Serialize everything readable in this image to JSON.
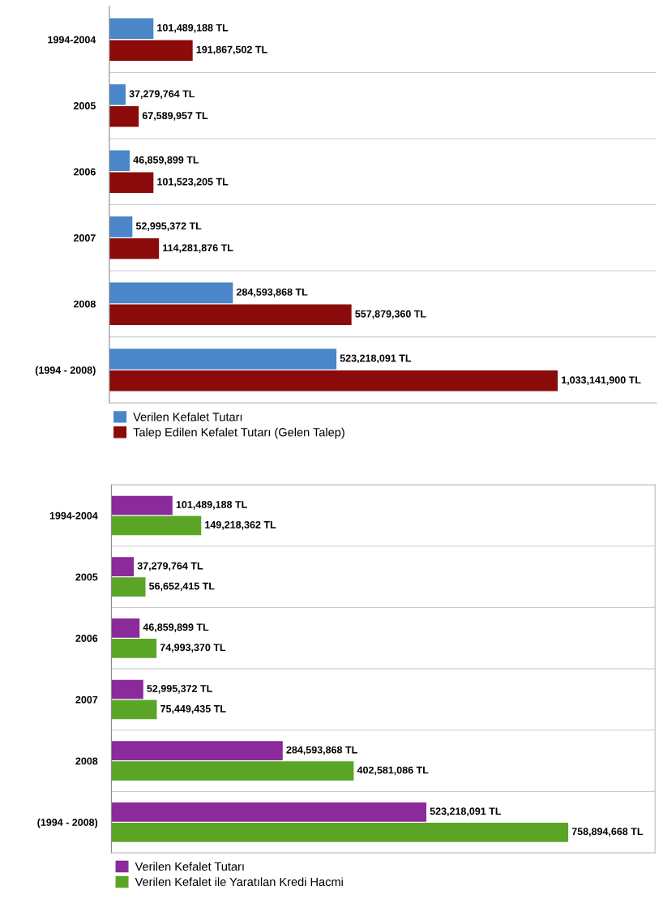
{
  "chart_data": [
    {
      "type": "bar",
      "orientation": "horizontal",
      "grid": true,
      "legend": "bottom",
      "categories": [
        "1994-2004",
        "2005",
        "2006",
        "2007",
        "2008",
        "(1994 - 2008)"
      ],
      "series": [
        {
          "name": "Verilen Kefalet Tutarı",
          "color": "#4a86c8",
          "values": [
            101489188,
            37279764,
            46859899,
            52995372,
            284593868,
            523218091
          ],
          "value_labels": [
            "101,489,188 TL",
            "37,279,764 TL",
            "46,859,899 TL",
            "52,995,372 TL",
            "284,593,868 TL",
            "523,218,091 TL"
          ]
        },
        {
          "name": "Talep Edilen Kefalet Tutarı (Gelen Talep)",
          "color": "#8b0a0a",
          "values": [
            191867502,
            67589957,
            101523205,
            114281876,
            557879360,
            1033141900
          ],
          "value_labels": [
            "191,867,502 TL",
            "67,589,957 TL",
            "101,523,205 TL",
            "114,281,876 TL",
            "557,879,360 TL",
            "1,033,141,900 TL"
          ]
        }
      ]
    },
    {
      "type": "bar",
      "orientation": "horizontal",
      "grid": true,
      "legend": "bottom",
      "categories": [
        "1994-2004",
        "2005",
        "2006",
        "2007",
        "2008",
        "(1994 - 2008)"
      ],
      "series": [
        {
          "name": "Verilen Kefalet Tutarı",
          "color": "#8b2a9a",
          "values": [
            101489188,
            37279764,
            46859899,
            52995372,
            284593868,
            523218091
          ],
          "value_labels": [
            "101,489,188 TL",
            "37,279,764 TL",
            "46,859,899 TL",
            "52,995,372 TL",
            "284,593,868 TL",
            "523,218,091 TL"
          ]
        },
        {
          "name": "Verilen Kefalet ile Yaratılan Kredi Hacmi",
          "color": "#5aa526",
          "values": [
            149218362,
            56652415,
            74993370,
            75449435,
            402581086,
            758894668
          ],
          "value_labels": [
            "149,218,362 TL",
            "56,652,415 TL",
            "74,993,370 TL",
            "75,449,435 TL",
            "402,581,086 TL",
            "758,894,668 TL"
          ]
        }
      ]
    }
  ]
}
